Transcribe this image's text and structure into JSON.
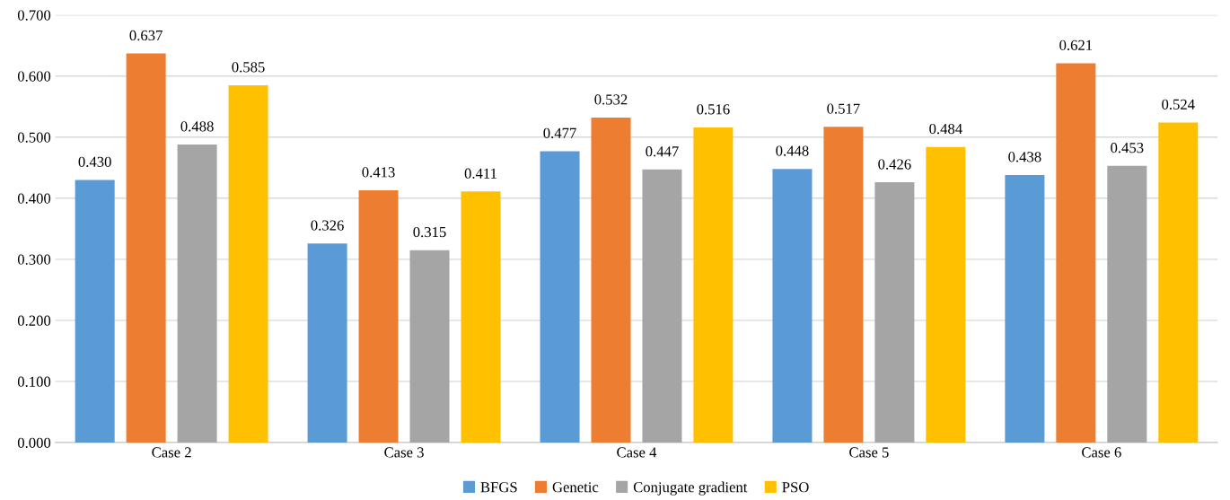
{
  "chart_data": {
    "type": "bar",
    "categories": [
      "Case 2",
      "Case 3",
      "Case 4",
      "Case 5",
      "Case 6"
    ],
    "series": [
      {
        "name": "BFGS",
        "color": "#5b9bd5",
        "values": [
          0.43,
          0.326,
          0.477,
          0.448,
          0.438
        ],
        "value_labels": [
          "0.430",
          "0.326",
          "0.477",
          "0.448",
          "0.438"
        ]
      },
      {
        "name": "Genetic",
        "color": "#ed7d31",
        "values": [
          0.637,
          0.413,
          0.532,
          0.517,
          0.621
        ],
        "value_labels": [
          "0.637",
          "0.413",
          "0.532",
          "0.517",
          "0.621"
        ]
      },
      {
        "name": "Conjugate gradient",
        "color": "#a5a5a5",
        "values": [
          0.488,
          0.315,
          0.447,
          0.426,
          0.453
        ],
        "value_labels": [
          "0.488",
          "0.315",
          "0.447",
          "0.426",
          "0.453"
        ]
      },
      {
        "name": "PSO",
        "color": "#ffc000",
        "values": [
          0.585,
          0.411,
          0.516,
          0.484,
          0.524
        ],
        "value_labels": [
          "0.585",
          "0.411",
          "0.516",
          "0.484",
          "0.524"
        ]
      }
    ],
    "ylim": [
      0,
      0.7
    ],
    "yticks": [
      {
        "value": 0,
        "label": "0.000"
      },
      {
        "value": 0.1,
        "label": "0.100"
      },
      {
        "value": 0.2,
        "label": "0.200"
      },
      {
        "value": 0.3,
        "label": "0.300"
      },
      {
        "value": 0.4,
        "label": "0.400"
      },
      {
        "value": 0.5,
        "label": "0.500"
      },
      {
        "value": 0.6,
        "label": "0.600"
      },
      {
        "value": 0.7,
        "label": "0.700"
      }
    ],
    "grid": "y",
    "legend": "bottom"
  }
}
